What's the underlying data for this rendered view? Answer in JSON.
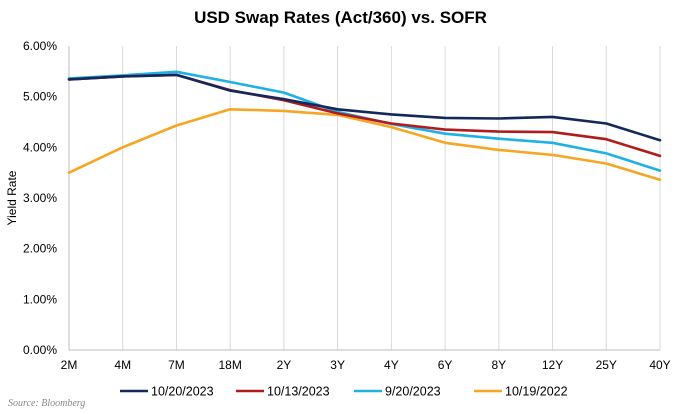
{
  "chart_data": {
    "type": "line",
    "title": "USD Swap Rates (Act/360) vs. SOFR",
    "ylabel": "Yield Rate",
    "xlabel": "",
    "categories": [
      "2M",
      "4M",
      "7M",
      "18M",
      "2Y",
      "3Y",
      "4Y",
      "6Y",
      "8Y",
      "12Y",
      "25Y",
      "40Y"
    ],
    "y_ticks": [
      "0.00%",
      "1.00%",
      "2.00%",
      "3.00%",
      "4.00%",
      "5.00%",
      "6.00%"
    ],
    "ylim": [
      0,
      6
    ],
    "grid": "vertical",
    "legend_position": "bottom",
    "series": [
      {
        "name": "10/20/2023",
        "color": "#14285a",
        "values": [
          5.34,
          5.4,
          5.43,
          5.12,
          4.95,
          4.75,
          4.65,
          4.58,
          4.57,
          4.6,
          4.47,
          4.14
        ]
      },
      {
        "name": "10/13/2023",
        "color": "#b01c1c",
        "values": [
          5.34,
          5.4,
          5.43,
          5.13,
          4.93,
          4.67,
          4.47,
          4.35,
          4.31,
          4.3,
          4.16,
          3.83
        ]
      },
      {
        "name": "9/20/2023",
        "color": "#1fb1e6",
        "values": [
          5.36,
          5.42,
          5.49,
          5.29,
          5.08,
          4.7,
          4.46,
          4.27,
          4.17,
          4.09,
          3.88,
          3.54
        ]
      },
      {
        "name": "10/19/2022",
        "color": "#f5a623",
        "values": [
          3.5,
          4.0,
          4.43,
          4.75,
          4.72,
          4.64,
          4.4,
          4.09,
          3.95,
          3.85,
          3.68,
          3.36
        ]
      }
    ]
  },
  "source": "Source: Bloomberg"
}
